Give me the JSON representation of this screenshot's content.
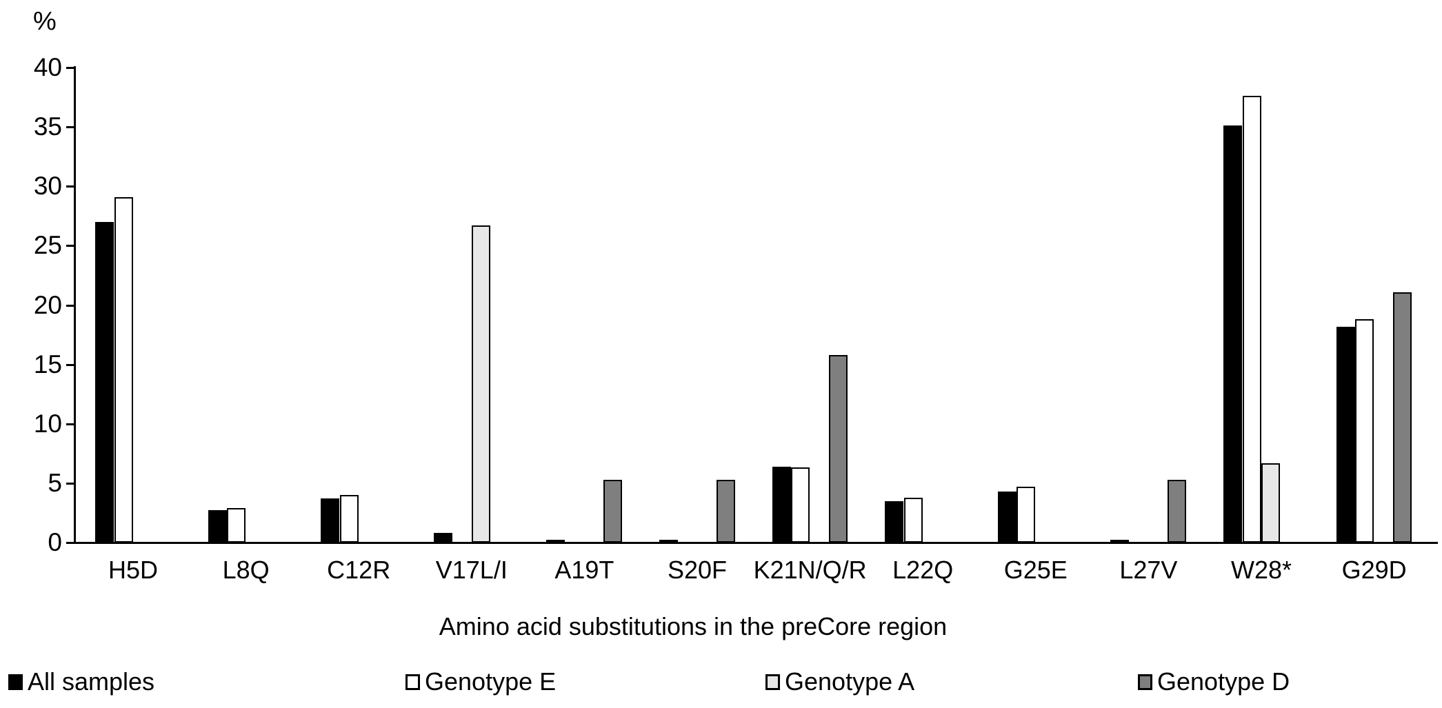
{
  "chart_data": {
    "type": "bar",
    "title": "",
    "ylabel": "%",
    "xlabel": "Amino acid substitutions in the preCore region",
    "categories": [
      "H5D",
      "L8Q",
      "C12R",
      "V17L/I",
      "A19T",
      "S20F",
      "K21N/Q/R",
      "L22Q",
      "G25E",
      "L27V",
      "W28*",
      "G29D"
    ],
    "series": [
      {
        "name": "All samples",
        "color": "#000000",
        "values": [
          27.0,
          2.7,
          3.7,
          0.8,
          0.2,
          0.2,
          6.4,
          3.5,
          4.3,
          0.2,
          35.1,
          18.2
        ]
      },
      {
        "name": "Genotype E",
        "color": "#ffffff",
        "values": [
          29.1,
          2.9,
          4.0,
          0,
          0,
          0,
          6.3,
          3.8,
          4.7,
          0,
          37.6,
          18.8
        ]
      },
      {
        "name": "Genotype A",
        "color": "#e7e7e7",
        "values": [
          0,
          0,
          0,
          26.7,
          0,
          0,
          0,
          0,
          0,
          0,
          6.7,
          0
        ]
      },
      {
        "name": "Genotype D",
        "color": "#7f7f7f",
        "values": [
          0,
          0,
          0,
          0,
          5.3,
          5.3,
          15.8,
          0,
          0,
          5.3,
          0,
          21.1
        ]
      }
    ],
    "ylim": [
      0,
      40
    ],
    "yticks": [
      0,
      5,
      10,
      15,
      20,
      25,
      30,
      35,
      40
    ],
    "bar_outline_color": "#000000",
    "legend_position": "bottom",
    "grid": false
  }
}
